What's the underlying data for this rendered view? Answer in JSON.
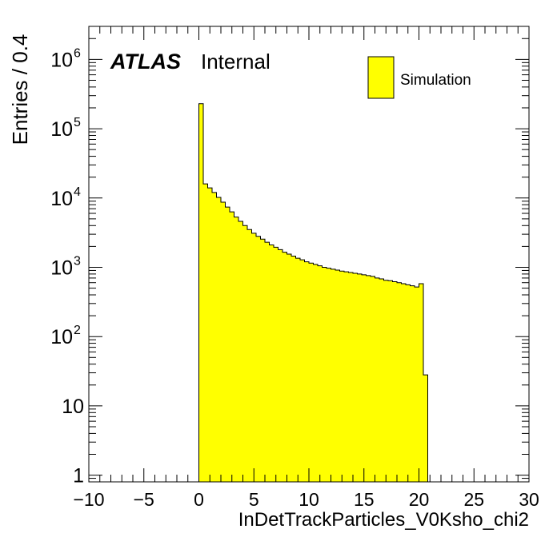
{
  "chart_data": {
    "type": "bar",
    "histogram": true,
    "xlabel": "InDetTrackParticles_V0Ksho_chi2",
    "ylabel": "Entries / 0.4",
    "xlim": [
      -10,
      30
    ],
    "ylim": [
      0.8,
      3000000
    ],
    "yscale": "log",
    "x_ticks": [
      -10,
      -5,
      0,
      5,
      10,
      15,
      20,
      25,
      30
    ],
    "x_tick_labels": [
      "−10",
      "−5",
      "0",
      "5",
      "10",
      "15",
      "20",
      "25",
      "30"
    ],
    "y_ticks": [
      1,
      10,
      100,
      1000,
      10000,
      100000,
      1000000
    ],
    "y_tick_labels": [
      {
        "base": "1",
        "exp": ""
      },
      {
        "base": "10",
        "exp": ""
      },
      {
        "base": "10",
        "exp": "2"
      },
      {
        "base": "10",
        "exp": "3"
      },
      {
        "base": "10",
        "exp": "4"
      },
      {
        "base": "10",
        "exp": "5"
      },
      {
        "base": "10",
        "exp": "6"
      }
    ],
    "bin_width": 0.4,
    "bin_start": 0.0,
    "series": [
      {
        "name": "Simulation",
        "color": "#ffff00",
        "values": [
          230000,
          16000,
          14000,
          12000,
          10200,
          8700,
          7400,
          6300,
          5300,
          4600,
          4000,
          3500,
          3100,
          2800,
          2550,
          2300,
          2100,
          1950,
          1800,
          1650,
          1550,
          1450,
          1350,
          1280,
          1200,
          1150,
          1100,
          1050,
          1000,
          970,
          940,
          910,
          880,
          860,
          840,
          820,
          800,
          780,
          760,
          740,
          700,
          680,
          650,
          640,
          620,
          600,
          580,
          560,
          540,
          520,
          580,
          28
        ]
      }
    ],
    "legend": {
      "position": "top-right",
      "entries": [
        "Simulation"
      ]
    },
    "annotations": {
      "experiment": "ATLAS",
      "status": "Internal"
    }
  }
}
